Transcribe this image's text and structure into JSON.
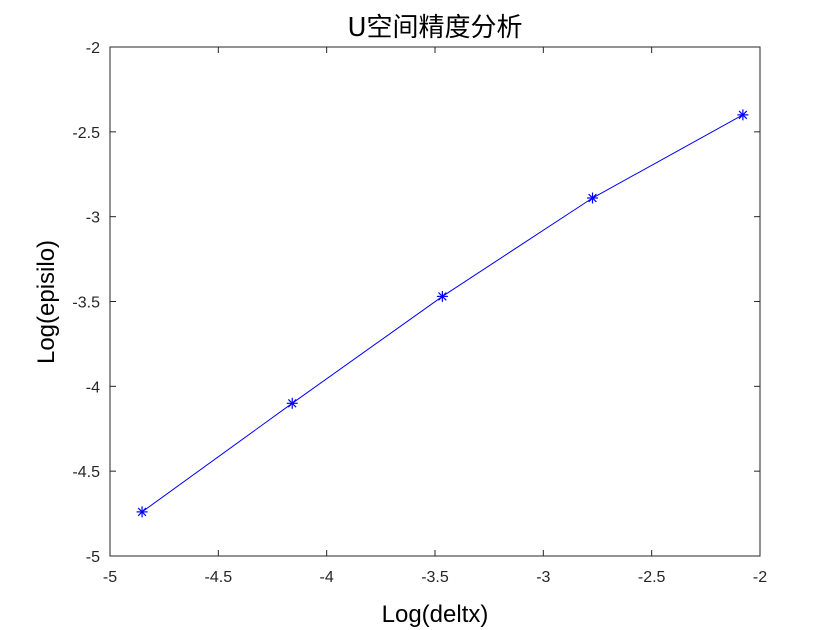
{
  "chart_data": {
    "type": "line",
    "title": "U空间精度分析",
    "xlabel": "Log(deltx)",
    "ylabel": "Log(episilo)",
    "xlim": [
      -5,
      -2
    ],
    "ylim": [
      -5,
      -2
    ],
    "xticks": [
      -5,
      -4.5,
      -4,
      -3.5,
      -3,
      -2.5,
      -2
    ],
    "yticks": [
      -5,
      -4.5,
      -4,
      -3.5,
      -3,
      -2.5,
      -2
    ],
    "xtick_labels": [
      "-5",
      "-4.5",
      "-4",
      "-3.5",
      "-3",
      "-2.5",
      "-2"
    ],
    "ytick_labels": [
      "-5",
      "-4.5",
      "-4",
      "-3.5",
      "-3",
      "-2.5",
      "-2"
    ],
    "grid": false,
    "series": [
      {
        "x": [
          -4.852,
          -4.159,
          -3.466,
          -2.773,
          -2.079
        ],
        "y": [
          -4.74,
          -4.1,
          -3.47,
          -2.89,
          -2.4
        ],
        "color": "#0000ff",
        "marker": "asterisk"
      }
    ]
  }
}
